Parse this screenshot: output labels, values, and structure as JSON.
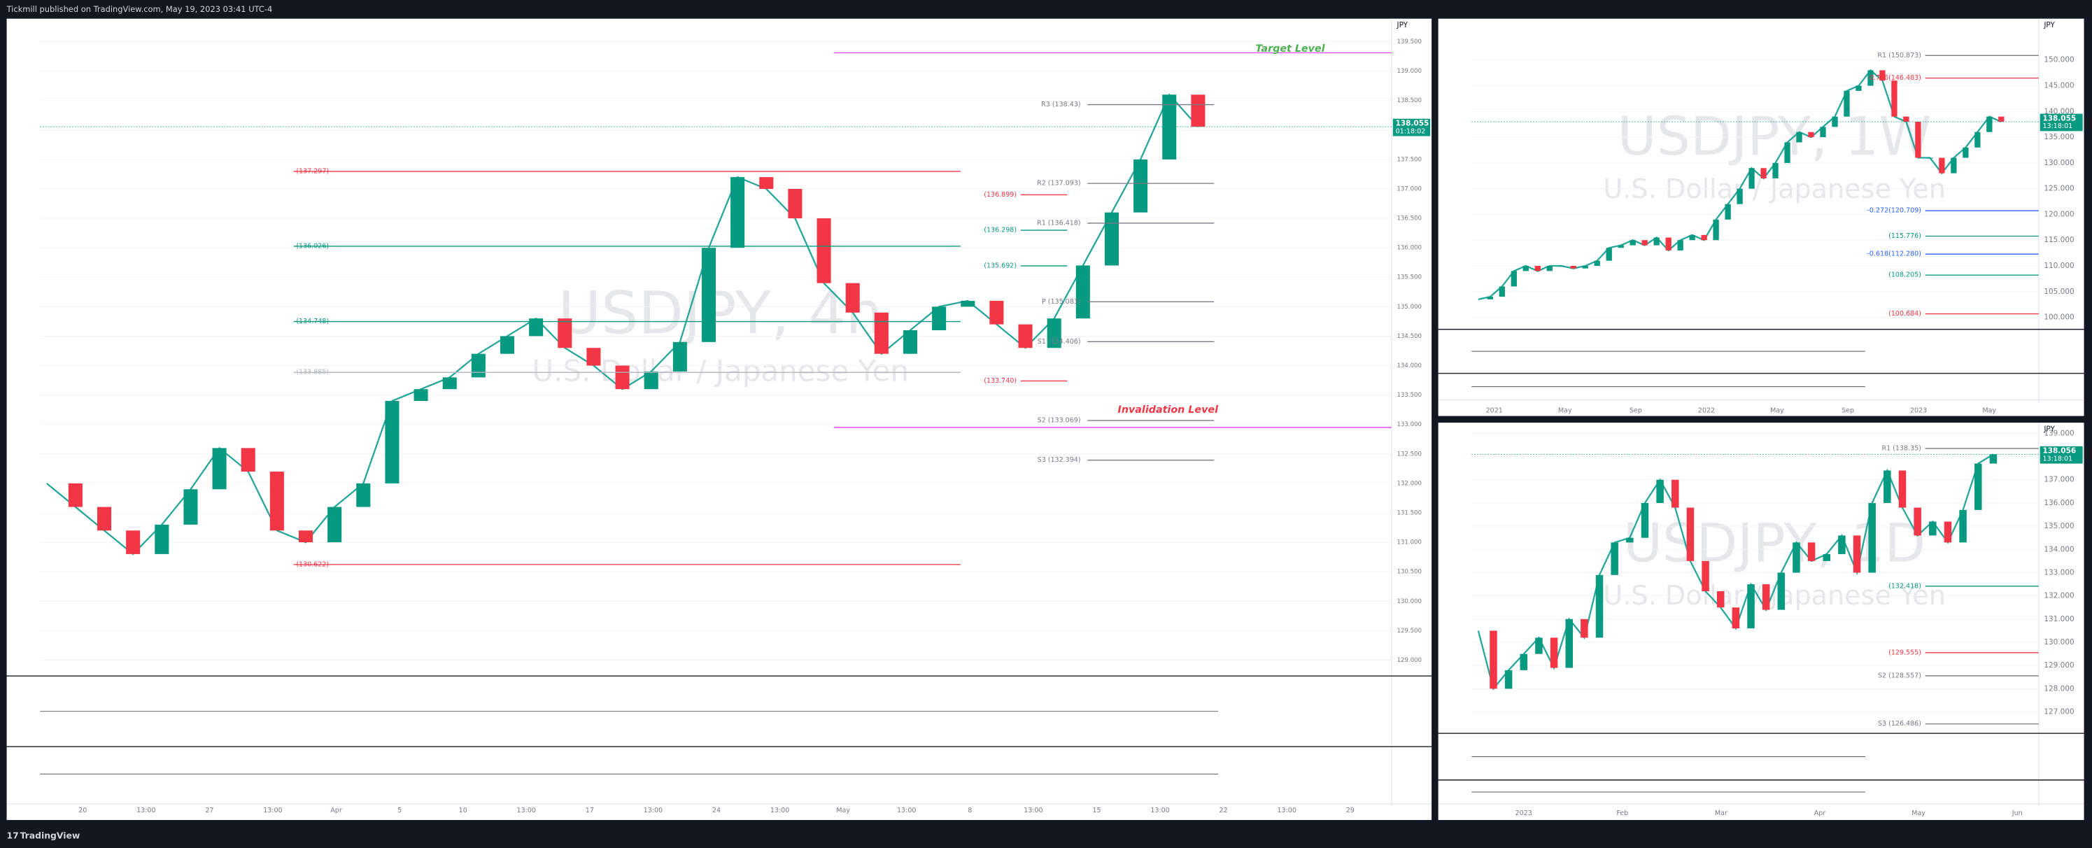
{
  "header": {
    "publisher": "Tickmill published on TradingView.com, May 19, 2023 03:41 UTC-4"
  },
  "footer": {
    "brand": "TradingView"
  },
  "panels": [
    {
      "symbol": "USDJPY, 4h",
      "description": "U.S. Dollar / Japanese Yen",
      "currency": "JPY",
      "price_tag": "138.055",
      "countdown": "01:18:02",
      "ylim": [
        128.73,
        139.89
      ],
      "yticks": [
        {
          "value": 129,
          "label": "129.000"
        },
        {
          "value": 129.5,
          "label": "129.500"
        },
        {
          "value": 130,
          "label": "130.000"
        },
        {
          "value": 130.5,
          "label": "130.500"
        },
        {
          "value": 131,
          "label": "131.000"
        },
        {
          "value": 131.5,
          "label": "131.500"
        },
        {
          "value": 132,
          "label": "132.000"
        },
        {
          "value": 132.5,
          "label": "132.500"
        },
        {
          "value": 133,
          "label": "133.000"
        },
        {
          "value": 133.5,
          "label": "133.500"
        },
        {
          "value": 134,
          "label": "134.000"
        },
        {
          "value": 134.5,
          "label": "134.500"
        },
        {
          "value": 135,
          "label": "135.000"
        },
        {
          "value": 135.5,
          "label": "135.500"
        },
        {
          "value": 136,
          "label": "136.000"
        },
        {
          "value": 136.5,
          "label": "136.500"
        },
        {
          "value": 137,
          "label": "137.000"
        },
        {
          "value": 137.5,
          "label": "137.500"
        },
        {
          "value": 138,
          "label": "138.000"
        },
        {
          "value": 138.5,
          "label": "138.500"
        },
        {
          "value": 139,
          "label": "139.000"
        },
        {
          "value": 139.5,
          "label": "139.500"
        }
      ],
      "time_labels": [
        "20",
        "13:00",
        "27",
        "13:00",
        "Apr",
        "5",
        "10",
        "13:00",
        "17",
        "13:00",
        "24",
        "13:00",
        "May",
        "13:00",
        "8",
        "13:00",
        "15",
        "13:00",
        "22",
        "13:00",
        "29"
      ],
      "closes": [
        132.0,
        131.6,
        131.2,
        130.8,
        131.3,
        131.9,
        132.6,
        132.2,
        131.2,
        131.0,
        131.6,
        132.0,
        133.4,
        133.6,
        133.8,
        134.2,
        134.5,
        134.8,
        134.3,
        134.0,
        133.6,
        133.9,
        134.4,
        136.0,
        137.2,
        137.0,
        136.5,
        135.4,
        134.9,
        134.2,
        134.6,
        135.0,
        135.1,
        134.7,
        134.3,
        134.8,
        135.7,
        136.6,
        137.5,
        138.6,
        138.055
      ],
      "fib_levels": [
        {
          "label": "(137.297)",
          "value": 137.297,
          "color": "#f23645"
        },
        {
          "label": "(136.026)",
          "value": 136.026,
          "color": "#089981"
        },
        {
          "label": "(134.748)",
          "value": 134.748,
          "color": "#089981"
        },
        {
          "label": "(133.885)",
          "value": 133.885,
          "color": "#b2b5be"
        },
        {
          "label": "(130.622)",
          "value": 130.622,
          "color": "#f23645"
        }
      ],
      "pivot_levels": [
        {
          "label": "R3 (138.43)",
          "value": 138.43,
          "color": "#787b86"
        },
        {
          "label": "R2 (137.093)",
          "value": 137.093,
          "color": "#787b86"
        },
        {
          "label": "R1 (136.418)",
          "value": 136.418,
          "color": "#787b86"
        },
        {
          "label": "P (135.083)",
          "value": 135.083,
          "color": "#787b86"
        },
        {
          "label": "S1 (134.406)",
          "value": 134.406,
          "color": "#787b86"
        },
        {
          "label": "S2 (133.069)",
          "value": 133.069,
          "color": "#787b86"
        },
        {
          "label": "S3 (132.394)",
          "value": 132.394,
          "color": "#787b86"
        }
      ],
      "swing_levels": [
        {
          "label": "(136.899)",
          "value": 136.899,
          "color": "#f23645"
        },
        {
          "label": "(136.298)",
          "value": 136.298,
          "color": "#089981"
        },
        {
          "label": "(135.692)",
          "value": 135.692,
          "color": "#089981"
        },
        {
          "label": "(133.740)",
          "value": 133.74,
          "color": "#f23645"
        }
      ],
      "annotations": [
        {
          "text": "Target Level",
          "value": 139.31,
          "color": "#4caf50"
        },
        {
          "text": "Invalidation Level",
          "value": 132.95,
          "color": "#f23645"
        }
      ]
    },
    {
      "symbol": "USDJPY, 1W",
      "description": "U.S. Dollar / Japanese Yen",
      "currency": "JPY",
      "price_tag": "138.055",
      "countdown": "13:18:01",
      "ylim": [
        97.67,
        158.03
      ],
      "yticks": [
        {
          "value": 100,
          "label": "100.000"
        },
        {
          "value": 105,
          "label": "105.000"
        },
        {
          "value": 110,
          "label": "110.000"
        },
        {
          "value": 115,
          "label": "115.000"
        },
        {
          "value": 120,
          "label": "120.000"
        },
        {
          "value": 125,
          "label": "125.000"
        },
        {
          "value": 130,
          "label": "130.000"
        },
        {
          "value": 135,
          "label": "135.000"
        },
        {
          "value": 140,
          "label": "140.000"
        },
        {
          "value": 145,
          "label": "145.000"
        },
        {
          "value": 150,
          "label": "150.000"
        }
      ],
      "time_labels": [
        "2021",
        "May",
        "Sep",
        "2022",
        "May",
        "Sep",
        "2023",
        "May"
      ],
      "closes": [
        103.5,
        104,
        106,
        109,
        110,
        109,
        110,
        110,
        109.5,
        110,
        111,
        113.5,
        114,
        115,
        114,
        115.5,
        113,
        115,
        116,
        115,
        119,
        122,
        125,
        129,
        127,
        130,
        134,
        136,
        135,
        137,
        139,
        144,
        145,
        148,
        146,
        139,
        138,
        131,
        131,
        128,
        131,
        133,
        136,
        139,
        138
      ],
      "levels": [
        {
          "label": "R1 (150.873)",
          "value": 150.873,
          "color": "#787b86"
        },
        {
          "label": "0.786(146.483)",
          "value": 146.483,
          "color": "#f23645"
        },
        {
          "label": "-0.272(120.709)",
          "value": 120.709,
          "color": "#2962ff"
        },
        {
          "label": "(115.776)",
          "value": 115.776,
          "color": "#089981"
        },
        {
          "label": "-0.618(112.280)",
          "value": 112.28,
          "color": "#2962ff"
        },
        {
          "label": "(108.205)",
          "value": 108.205,
          "color": "#089981"
        },
        {
          "label": "(100.684)",
          "value": 100.684,
          "color": "#f23645"
        }
      ]
    },
    {
      "symbol": "USDJPY, 1D",
      "description": "U.S. Dollar / Japanese Yen",
      "currency": "JPY",
      "price_tag": "138.056",
      "countdown": "13:18:01",
      "ylim": [
        126.08,
        139.46
      ],
      "yticks": [
        {
          "value": 127,
          "label": "127.000"
        },
        {
          "value": 128,
          "label": "128.000"
        },
        {
          "value": 129,
          "label": "129.000"
        },
        {
          "value": 130,
          "label": "130.000"
        },
        {
          "value": 131,
          "label": "131.000"
        },
        {
          "value": 132,
          "label": "132.000"
        },
        {
          "value": 133,
          "label": "133.000"
        },
        {
          "value": 134,
          "label": "134.000"
        },
        {
          "value": 135,
          "label": "135.000"
        },
        {
          "value": 136,
          "label": "136.000"
        },
        {
          "value": 137,
          "label": "137.000"
        },
        {
          "value": 138,
          "label": "138.000"
        },
        {
          "value": 139,
          "label": "139.000"
        }
      ],
      "time_labels": [
        "2023",
        "Feb",
        "Mar",
        "Apr",
        "May",
        "Jun"
      ],
      "closes": [
        130.5,
        128,
        128.8,
        129.5,
        130.2,
        128.9,
        131,
        130.2,
        132.9,
        134.3,
        134.5,
        136,
        137,
        135.8,
        133.5,
        132.2,
        131.5,
        130.6,
        132.5,
        131.4,
        133,
        134.3,
        133.5,
        133.8,
        134.6,
        133,
        136,
        137.4,
        135.8,
        134.6,
        135.2,
        134.3,
        135.7,
        137.7,
        138.1
      ],
      "levels": [
        {
          "label": "R1 (138.35)",
          "value": 138.35,
          "color": "#787b86"
        },
        {
          "label": "(132.418)",
          "value": 132.418,
          "color": "#089981"
        },
        {
          "label": "(129.555)",
          "value": 129.555,
          "color": "#f23645"
        },
        {
          "label": "S2 (128.557)",
          "value": 128.557,
          "color": "#787b86"
        },
        {
          "label": "S3 (126.486)",
          "value": 126.486,
          "color": "#787b86"
        }
      ]
    }
  ]
}
